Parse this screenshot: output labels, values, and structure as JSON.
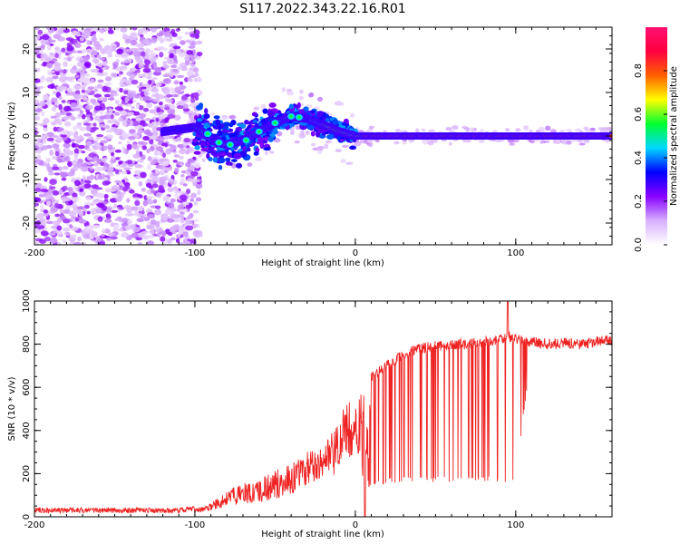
{
  "title": "S117.2022.343.22.16.R01",
  "chart_data": [
    {
      "type": "heatmap",
      "xlabel": "Height of straight line (km)",
      "ylabel": "Frequency (Hz)",
      "xlim": [
        -200,
        160
      ],
      "ylim": [
        -25,
        25
      ],
      "x_ticks": [
        -200,
        -100,
        0,
        100
      ],
      "y_ticks": [
        -20,
        -10,
        0,
        10,
        20
      ],
      "colorbar": {
        "label": "Normalized spectral amplitude",
        "range": [
          0,
          1
        ],
        "ticks": [
          "0.0",
          "0.2",
          "0.4",
          "0.6",
          "0.8"
        ],
        "colors": [
          "#ffffff",
          "#d8b0ff",
          "#8800ff",
          "#0000ff",
          "#00d8ff",
          "#00ff30",
          "#ffff00",
          "#ff6000",
          "#ff0040",
          "#ff1070"
        ]
      },
      "ridge": {
        "x": [
          -120,
          -100,
          -95,
          -90,
          -80,
          -70,
          -60,
          -50,
          -40,
          -30,
          -20,
          -10,
          0,
          50,
          100,
          160
        ],
        "frequency": [
          1,
          2,
          1,
          -1,
          -2,
          -1,
          1,
          3,
          4.5,
          4,
          2.5,
          1,
          0,
          0,
          0,
          0
        ]
      }
    },
    {
      "type": "line",
      "xlabel": "Height of straight line (km)",
      "ylabel": "SNR (10 * v/v)",
      "xlim": [
        -200,
        160
      ],
      "ylim": [
        0,
        1000
      ],
      "x_ticks": [
        -200,
        -100,
        0,
        100
      ],
      "y_ticks": [
        0,
        200,
        400,
        600,
        800,
        1000
      ],
      "series": [
        {
          "color": "#ee2222",
          "x": [
            -200,
            -150,
            -110,
            -100,
            -90,
            -80,
            -70,
            -60,
            -50,
            -40,
            -30,
            -20,
            -10,
            -5,
            0,
            5,
            10,
            20,
            30,
            40,
            50,
            60,
            70,
            80,
            90,
            95,
            100,
            110,
            120,
            130,
            140,
            150,
            160
          ],
          "values": [
            30,
            30,
            30,
            40,
            60,
            120,
            160,
            170,
            220,
            250,
            300,
            320,
            450,
            550,
            500,
            600,
            650,
            700,
            750,
            780,
            790,
            800,
            800,
            810,
            820,
            840,
            820,
            810,
            800,
            805,
            800,
            810,
            820
          ],
          "floor": [
            10,
            10,
            10,
            15,
            30,
            50,
            60,
            70,
            80,
            100,
            150,
            180,
            200,
            250,
            300,
            150,
            130,
            150,
            160,
            160,
            160,
            160,
            160,
            160,
            160,
            160,
            160,
            780,
            770,
            770,
            780,
            780,
            790
          ]
        }
      ]
    }
  ]
}
